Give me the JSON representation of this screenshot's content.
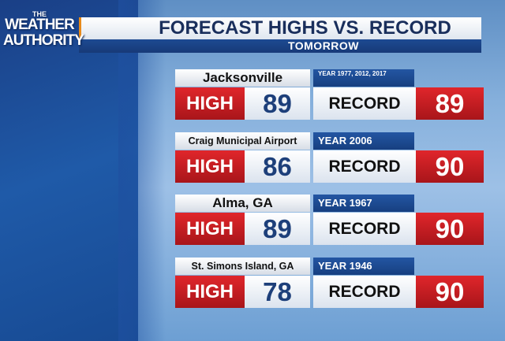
{
  "logo": {
    "lines": [
      "THE",
      "WEATHER",
      "AUTHORITY"
    ]
  },
  "header": {
    "title": "FORECAST HIGHS VS. RECORD",
    "subtitle": "TOMORROW"
  },
  "rows": [
    {
      "location": "Jacksonville",
      "year": "YEAR 1977, 2012, 2017",
      "high_label": "HIGH",
      "high": "89",
      "record_label": "RECORD",
      "record": "89"
    },
    {
      "location": "Craig Municipal Airport",
      "year": "YEAR 2006",
      "high_label": "HIGH",
      "high": "86",
      "record_label": "RECORD",
      "record": "90"
    },
    {
      "location": "Alma, GA",
      "year": "YEAR 1967",
      "high_label": "HIGH",
      "high": "89",
      "record_label": "RECORD",
      "record": "90"
    },
    {
      "location": "St. Simons Island, GA",
      "year": "YEAR 1946",
      "high_label": "HIGH",
      "high": "78",
      "record_label": "RECORD",
      "record": "90"
    }
  ]
}
